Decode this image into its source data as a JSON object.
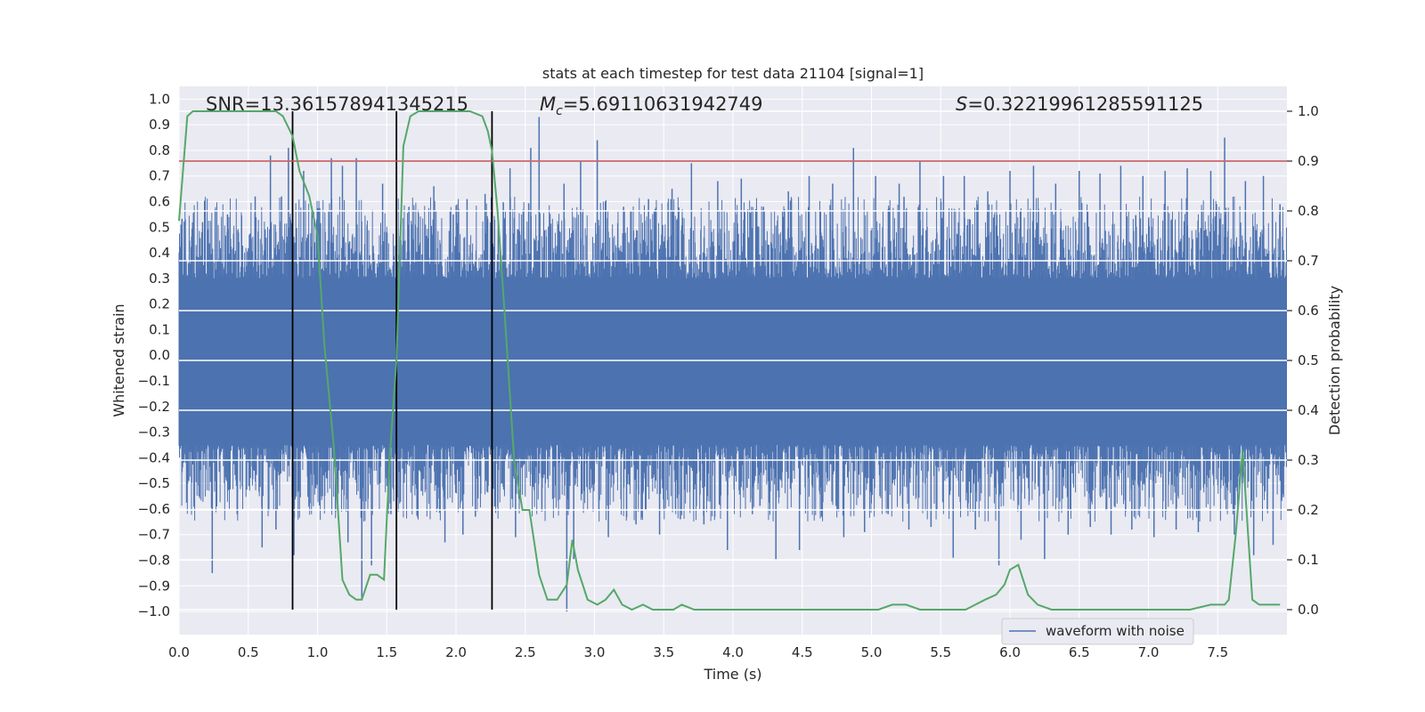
{
  "chart_data": {
    "type": "line",
    "title": "stats at each timestep for test data 21104 [signal=1]",
    "xlabel": "Time (s)",
    "ylabel": "Whitened strain",
    "y2label": "Detection probability",
    "xlim": [
      0.0,
      8.0
    ],
    "ylim": [
      -1.09,
      1.05
    ],
    "y2lim": [
      -0.05,
      1.05
    ],
    "xticks": [
      "0.0",
      "0.5",
      "1.0",
      "1.5",
      "2.0",
      "2.5",
      "3.0",
      "3.5",
      "4.0",
      "4.5",
      "5.0",
      "5.5",
      "6.0",
      "6.5",
      "7.0",
      "7.5"
    ],
    "xtick_values": [
      0.0,
      0.5,
      1.0,
      1.5,
      2.0,
      2.5,
      3.0,
      3.5,
      4.0,
      4.5,
      5.0,
      5.5,
      6.0,
      6.5,
      7.0,
      7.5
    ],
    "yticks": [
      "1.0",
      "0.9",
      "0.8",
      "0.7",
      "0.6",
      "0.5",
      "0.4",
      "0.3",
      "0.2",
      "0.1",
      "0.0",
      "−0.1",
      "−0.2",
      "−0.3",
      "−0.4",
      "−0.5",
      "−0.6",
      "−0.7",
      "−0.8",
      "−0.9",
      "−1.0"
    ],
    "ytick_values": [
      1.0,
      0.9,
      0.8,
      0.7,
      0.6,
      0.5,
      0.4,
      0.3,
      0.2,
      0.1,
      0.0,
      -0.1,
      -0.2,
      -0.3,
      -0.4,
      -0.5,
      -0.6,
      -0.7,
      -0.8,
      -0.9,
      -1.0
    ],
    "y2ticks": [
      "1.0",
      "0.9",
      "0.8",
      "0.7",
      "0.6",
      "0.5",
      "0.4",
      "0.3",
      "0.2",
      "0.1",
      "0.0"
    ],
    "y2tick_values": [
      1.0,
      0.9,
      0.8,
      0.7,
      0.6,
      0.5,
      0.4,
      0.3,
      0.2,
      0.1,
      0.0
    ],
    "annotations": {
      "snr": "SNR=13.361578941345215",
      "mc_symbol": "M",
      "mc_sub": "c",
      "mc_value": "=5.69110631942749",
      "s_symbol": "S",
      "s_value": "=0.32219961285591125"
    },
    "legend": {
      "label": "waveform with noise",
      "placement": "lower-right"
    },
    "vlines_x": [
      0.82,
      1.57,
      2.26
    ],
    "threshold_y2": 0.9,
    "waveform": {
      "name": "waveform with noise",
      "duration": 8.0,
      "core_upper": 0.3,
      "core_lower": -0.35,
      "bursts": [
        [
          0.07,
          -0.49
        ],
        [
          0.17,
          0.52
        ],
        [
          0.24,
          -0.85
        ],
        [
          0.35,
          0.55
        ],
        [
          0.42,
          -0.62
        ],
        [
          0.55,
          0.62
        ],
        [
          0.6,
          -0.75
        ],
        [
          0.66,
          0.78
        ],
        [
          0.7,
          -0.68
        ],
        [
          0.74,
          0.62
        ],
        [
          0.79,
          0.81
        ],
        [
          0.83,
          -0.78
        ],
        [
          0.9,
          0.72
        ],
        [
          0.96,
          0.58
        ],
        [
          1.02,
          -0.55
        ],
        [
          1.1,
          0.77
        ],
        [
          1.13,
          -0.61
        ],
        [
          1.18,
          0.74
        ],
        [
          1.22,
          -0.73
        ],
        [
          1.28,
          0.77
        ],
        [
          1.32,
          -0.95
        ],
        [
          1.39,
          -0.82
        ],
        [
          1.47,
          0.67
        ],
        [
          1.53,
          -0.62
        ],
        [
          1.66,
          0.58
        ],
        [
          1.75,
          -0.53
        ],
        [
          1.84,
          0.66
        ],
        [
          1.92,
          -0.73
        ],
        [
          1.98,
          0.55
        ],
        [
          2.05,
          -0.7
        ],
        [
          2.08,
          0.61
        ],
        [
          2.14,
          -0.63
        ],
        [
          2.21,
          0.63
        ],
        [
          2.28,
          -0.59
        ],
        [
          2.39,
          0.73
        ],
        [
          2.43,
          -0.71
        ],
        [
          2.54,
          0.81
        ],
        [
          2.6,
          0.93
        ],
        [
          2.62,
          -0.61
        ],
        [
          2.78,
          0.67
        ],
        [
          2.8,
          -1.0
        ],
        [
          2.85,
          -0.8
        ],
        [
          2.9,
          0.76
        ],
        [
          3.02,
          0.84
        ],
        [
          3.1,
          -0.71
        ],
        [
          3.21,
          0.58
        ],
        [
          3.3,
          -0.66
        ],
        [
          3.39,
          0.61
        ],
        [
          3.47,
          -0.7
        ],
        [
          3.56,
          0.65
        ],
        [
          3.62,
          -0.64
        ],
        [
          3.7,
          0.75
        ],
        [
          3.79,
          -0.66
        ],
        [
          3.89,
          0.68
        ],
        [
          3.96,
          -0.76
        ],
        [
          4.06,
          0.69
        ],
        [
          4.14,
          -0.62
        ],
        [
          4.22,
          0.58
        ],
        [
          4.31,
          -0.8
        ],
        [
          4.4,
          0.64
        ],
        [
          4.48,
          -0.76
        ],
        [
          4.55,
          0.7
        ],
        [
          4.64,
          -0.63
        ],
        [
          4.72,
          0.67
        ],
        [
          4.8,
          -0.71
        ],
        [
          4.87,
          0.81
        ],
        [
          4.95,
          -0.69
        ],
        [
          5.03,
          0.7
        ],
        [
          5.12,
          -0.62
        ],
        [
          5.2,
          0.67
        ],
        [
          5.27,
          -0.68
        ],
        [
          5.35,
          0.76
        ],
        [
          5.43,
          -0.67
        ],
        [
          5.52,
          0.7
        ],
        [
          5.59,
          -0.79
        ],
        [
          5.67,
          0.7
        ],
        [
          5.75,
          -0.68
        ],
        [
          5.84,
          0.64
        ],
        [
          5.92,
          -0.82
        ],
        [
          6.0,
          0.72
        ],
        [
          6.08,
          -0.72
        ],
        [
          6.17,
          0.74
        ],
        [
          6.25,
          -0.8
        ],
        [
          6.33,
          0.67
        ],
        [
          6.42,
          -0.7
        ],
        [
          6.5,
          0.72
        ],
        [
          6.58,
          -0.67
        ],
        [
          6.65,
          0.71
        ],
        [
          6.73,
          -0.7
        ],
        [
          6.8,
          0.74
        ],
        [
          6.88,
          -0.68
        ],
        [
          6.96,
          0.7
        ],
        [
          7.04,
          -0.71
        ],
        [
          7.12,
          0.72
        ],
        [
          7.2,
          -0.68
        ],
        [
          7.28,
          0.73
        ],
        [
          7.36,
          -0.69
        ],
        [
          7.45,
          0.72
        ],
        [
          7.55,
          0.85
        ],
        [
          7.62,
          -0.7
        ],
        [
          7.7,
          0.68
        ],
        [
          7.76,
          -0.78
        ],
        [
          7.83,
          0.7
        ],
        [
          7.9,
          -0.74
        ],
        [
          7.95,
          0.59
        ]
      ]
    },
    "detection_probability": {
      "x": [
        0.0,
        0.06,
        0.1,
        0.15,
        0.3,
        0.5,
        0.7,
        0.75,
        0.82,
        0.87,
        0.94,
        1.0,
        1.05,
        1.12,
        1.18,
        1.23,
        1.28,
        1.32,
        1.38,
        1.43,
        1.48,
        1.52,
        1.57,
        1.62,
        1.67,
        1.73,
        1.8,
        1.9,
        2.0,
        2.1,
        2.19,
        2.23,
        2.26,
        2.3,
        2.35,
        2.42,
        2.48,
        2.53,
        2.6,
        2.66,
        2.73,
        2.8,
        2.84,
        2.88,
        2.95,
        3.02,
        3.08,
        3.14,
        3.2,
        3.27,
        3.35,
        3.42,
        3.5,
        3.57,
        3.63,
        3.72,
        3.8,
        3.9,
        4.0,
        4.1,
        4.3,
        4.5,
        4.7,
        4.9,
        5.05,
        5.15,
        5.25,
        5.35,
        5.45,
        5.55,
        5.68,
        5.75,
        5.82,
        5.9,
        5.96,
        6.0,
        6.06,
        6.13,
        6.2,
        6.3,
        6.5,
        7.0,
        7.3,
        7.45,
        7.55,
        7.58,
        7.63,
        7.68,
        7.75,
        7.8,
        7.88,
        7.95
      ],
      "y": [
        0.78,
        0.99,
        1.0,
        1.0,
        1.0,
        1.0,
        1.0,
        0.99,
        0.95,
        0.88,
        0.83,
        0.75,
        0.53,
        0.32,
        0.06,
        0.03,
        0.02,
        0.02,
        0.07,
        0.07,
        0.06,
        0.3,
        0.5,
        0.93,
        0.99,
        1.0,
        1.0,
        1.0,
        1.0,
        1.0,
        0.99,
        0.96,
        0.92,
        0.8,
        0.6,
        0.3,
        0.2,
        0.2,
        0.07,
        0.02,
        0.02,
        0.05,
        0.14,
        0.08,
        0.02,
        0.01,
        0.02,
        0.04,
        0.01,
        0.0,
        0.01,
        0.0,
        0.0,
        0.0,
        0.01,
        0.0,
        0.0,
        0.0,
        0.0,
        0.0,
        0.0,
        0.0,
        0.0,
        0.0,
        0.0,
        0.01,
        0.01,
        0.0,
        0.0,
        0.0,
        0.0,
        0.01,
        0.02,
        0.03,
        0.05,
        0.08,
        0.09,
        0.03,
        0.01,
        0.0,
        0.0,
        0.0,
        0.0,
        0.01,
        0.01,
        0.02,
        0.15,
        0.32,
        0.02,
        0.01,
        0.01,
        0.01
      ]
    },
    "colors": {
      "background": "#eaeaf2",
      "grid": "#ffffff",
      "waveform": "#4c72b0",
      "probability": "#55a868",
      "threshold": "#c44e52",
      "vlines": "#000000",
      "text": "#262626"
    }
  }
}
